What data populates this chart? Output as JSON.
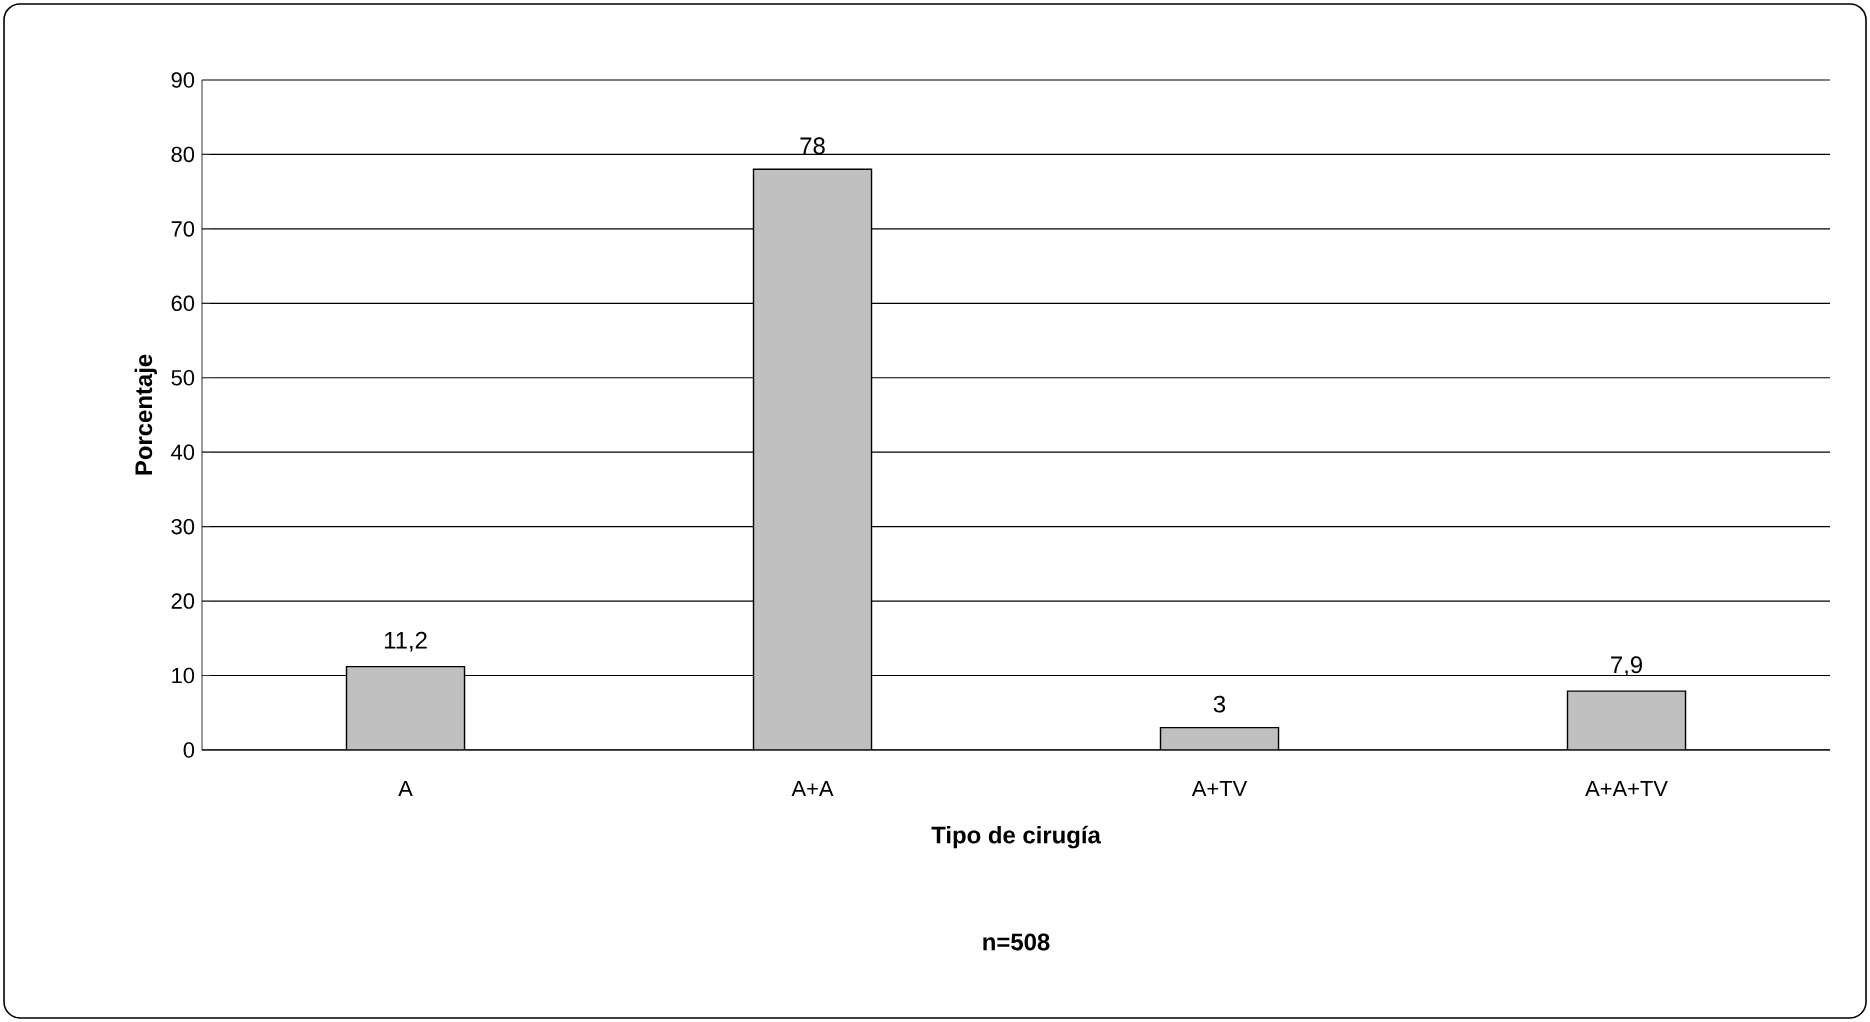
{
  "chart_data": {
    "type": "bar",
    "xlabel": "Tipo de cirugía",
    "ylabel": "Porcentaje",
    "categories": [
      "A",
      "A+A",
      "A+TV",
      "A+A+TV"
    ],
    "values": [
      11.2,
      78,
      3,
      7.9
    ],
    "value_labels": [
      "11,2",
      "78",
      "3",
      "7,9"
    ],
    "color": "#c0c0c0",
    "ylim": [
      0,
      90
    ],
    "yticks": [
      0,
      10,
      20,
      30,
      40,
      50,
      60,
      70,
      80,
      90
    ],
    "grid": "y",
    "annotations": [
      "n=508"
    ]
  }
}
